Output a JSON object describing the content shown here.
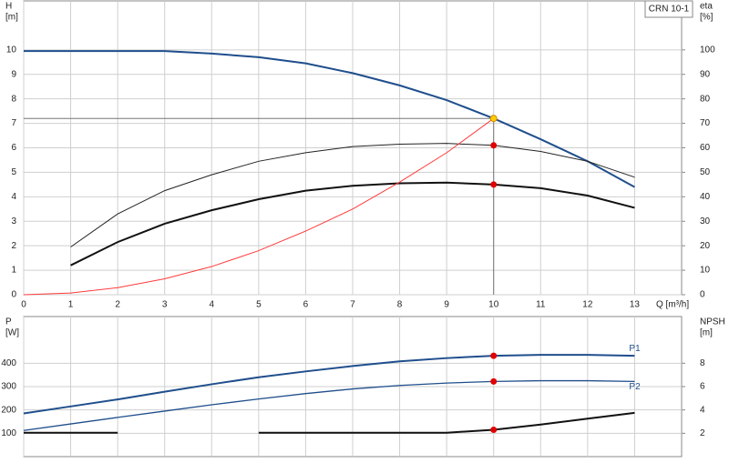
{
  "chart_data": [
    {
      "type": "line",
      "ylabel": [
        "H",
        "[m]"
      ],
      "y2label": [
        "eta",
        "[%]"
      ],
      "xlabel": "Q [m³/h]",
      "legend_box": "CRN 10-1",
      "xlim": [
        0,
        14
      ],
      "xticks": [
        0,
        1,
        2,
        3,
        4,
        5,
        6,
        7,
        8,
        9,
        10,
        11,
        12,
        13
      ],
      "show_xtick_labels": true,
      "ylim": [
        0,
        12
      ],
      "yticks": [
        0,
        1,
        2,
        3,
        4,
        5,
        6,
        7,
        8,
        9,
        10
      ],
      "y2lim": [
        0,
        120
      ],
      "y2ticks": [
        0,
        10,
        20,
        30,
        40,
        50,
        60,
        70,
        80,
        90,
        100
      ],
      "grid": true,
      "x": [
        0,
        1,
        2,
        3,
        4,
        5,
        6,
        7,
        8,
        9,
        10,
        11,
        12,
        13
      ],
      "series": [
        {
          "axis": "y",
          "color": "#1f4e8c",
          "width": 2,
          "values": [
            9.95,
            9.95,
            9.95,
            9.95,
            9.85,
            9.7,
            9.45,
            9.05,
            8.55,
            7.95,
            7.2,
            6.35,
            5.45,
            4.4
          ]
        },
        {
          "axis": "y2",
          "color": "#222222",
          "width": 1,
          "values": [
            null,
            19.5,
            33,
            42.5,
            49,
            54.5,
            58,
            60.5,
            61.5,
            61.8,
            61,
            58.5,
            54.5,
            48
          ]
        },
        {
          "axis": "y2",
          "color": "#111111",
          "width": 2,
          "values": [
            null,
            12,
            21.5,
            29,
            34.5,
            39,
            42.5,
            44.5,
            45.5,
            45.8,
            45,
            43.5,
            40.5,
            35.5
          ]
        },
        {
          "axis": "y",
          "color": "#ff3b3b",
          "width": 1,
          "values": [
            0,
            0.07,
            0.29,
            0.65,
            1.15,
            1.8,
            2.6,
            3.5,
            4.6,
            5.8,
            7.2,
            null,
            null,
            null
          ]
        }
      ],
      "duty_point": {
        "x": 10,
        "y": 7.2
      },
      "points": [
        {
          "axis": "y",
          "x": 10,
          "y": 7.2,
          "color": "#ffcc00"
        },
        {
          "axis": "y2",
          "x": 10,
          "y": 61,
          "color": "#e00000"
        },
        {
          "axis": "y2",
          "x": 10,
          "y": 45,
          "color": "#e00000"
        }
      ]
    },
    {
      "type": "line",
      "ylabel": [
        "P",
        "[W]"
      ],
      "y2label": [
        "NPSH",
        "[m]"
      ],
      "xlim": [
        0,
        14
      ],
      "xticks": [
        0,
        1,
        2,
        3,
        4,
        5,
        6,
        7,
        8,
        9,
        10,
        11,
        12,
        13
      ],
      "show_xtick_labels": false,
      "ylim": [
        0,
        600
      ],
      "yticks": [
        100,
        200,
        300,
        400
      ],
      "y2lim": [
        0,
        12
      ],
      "y2ticks": [
        2,
        4,
        6,
        8
      ],
      "grid": true,
      "x": [
        0,
        1,
        2,
        3,
        4,
        5,
        6,
        7,
        8,
        9,
        10,
        11,
        12,
        13
      ],
      "series": [
        {
          "name": "P1",
          "axis": "y",
          "color": "#1f4e8c",
          "width": 2,
          "values": [
            185,
            215,
            245,
            278,
            310,
            340,
            365,
            388,
            408,
            422,
            432,
            436,
            436,
            432
          ]
        },
        {
          "name": "P2",
          "axis": "y",
          "color": "#1f4e8c",
          "width": 1.3,
          "values": [
            112,
            140,
            168,
            195,
            222,
            247,
            270,
            290,
            305,
            315,
            322,
            325,
            325,
            322
          ]
        },
        {
          "axis": "y2",
          "color": "#111111",
          "width": 2,
          "values": [
            2.05,
            2.05,
            2.05,
            null,
            null,
            2.05,
            2.05,
            2.05,
            2.05,
            2.05,
            2.3,
            2.75,
            3.25,
            3.75
          ]
        }
      ],
      "points": [
        {
          "axis": "y",
          "x": 10,
          "y": 432,
          "color": "#e00000"
        },
        {
          "axis": "y",
          "x": 10,
          "y": 322,
          "color": "#e00000"
        },
        {
          "axis": "y2",
          "x": 10,
          "y": 2.3,
          "color": "#e00000"
        }
      ]
    }
  ]
}
